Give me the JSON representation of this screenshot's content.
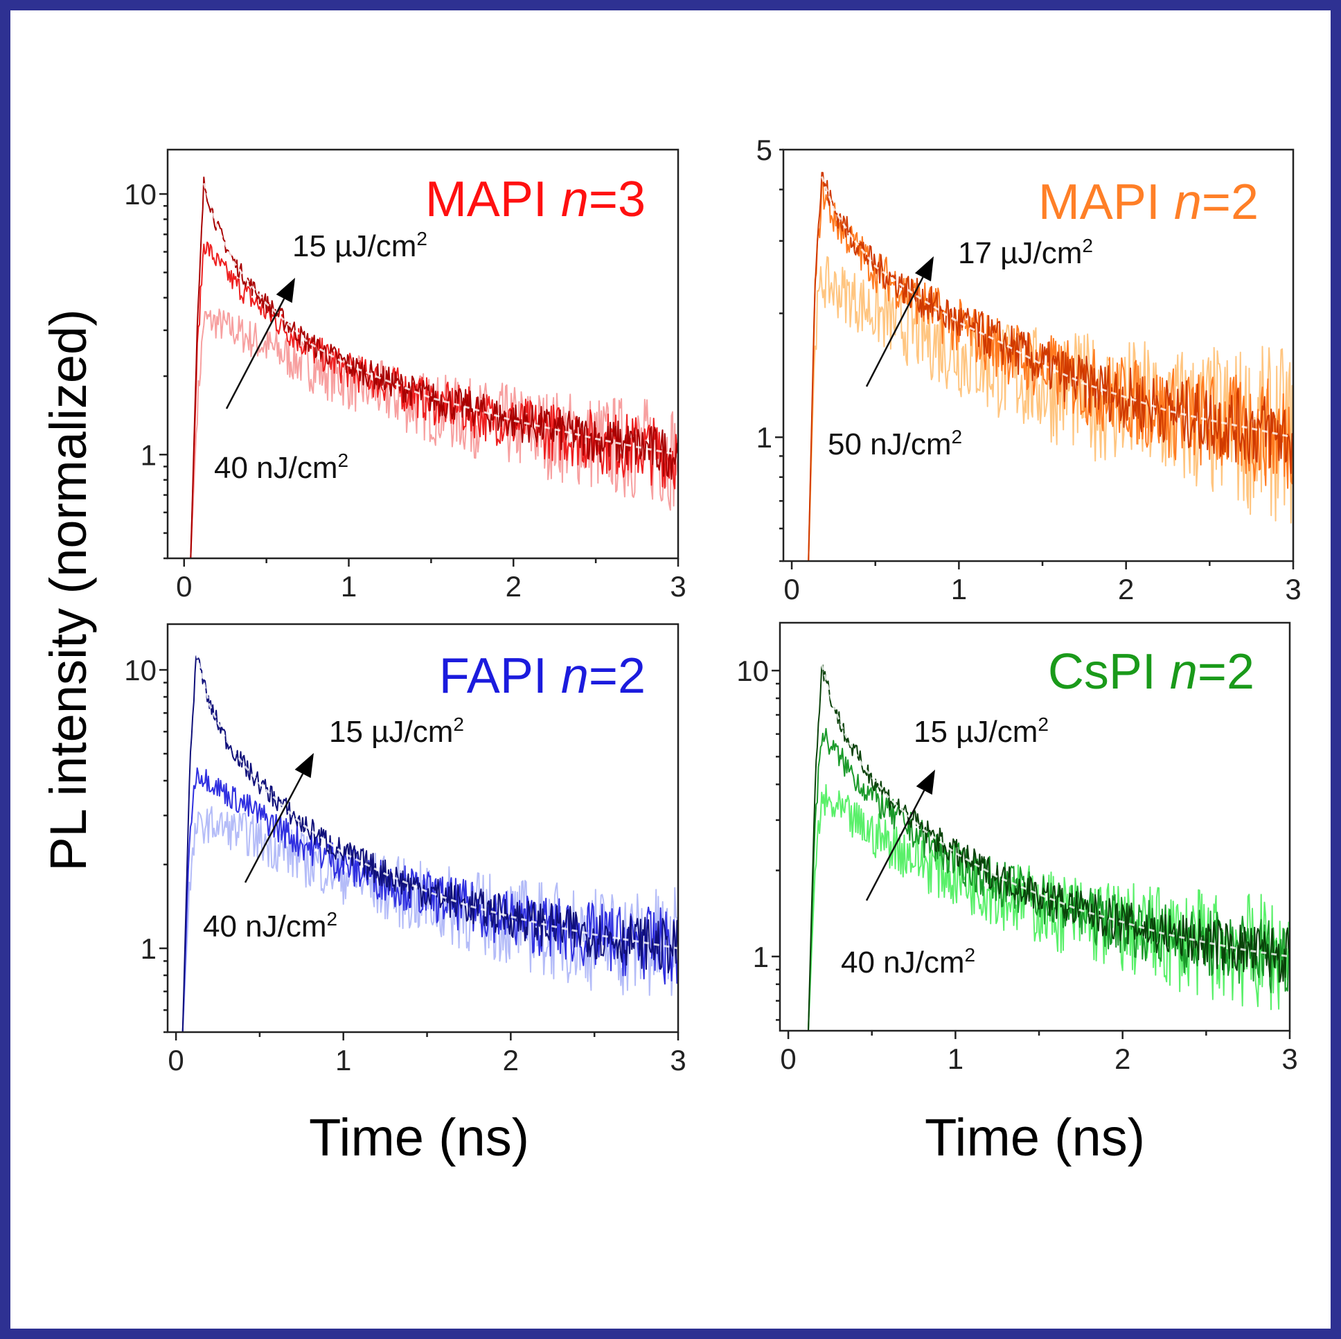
{
  "figure": {
    "ylabel": "PL intensity (normalized)",
    "xlabel": "Time (ns)",
    "border_color": "#2e3192"
  },
  "chart_data": [
    {
      "type": "line",
      "title": {
        "prefix": "MAPI ",
        "italic": "n",
        "suffix": "=3"
      },
      "title_color": "#ff1010",
      "y_scale": "log",
      "xlim": [
        -0.1,
        3
      ],
      "ylim": [
        0.4,
        14.8
      ],
      "x_ticks": [
        "0",
        "1",
        "2",
        "3"
      ],
      "y_ticks": [
        {
          "value": 10,
          "label": "10"
        },
        {
          "value": 1,
          "label": "1"
        }
      ],
      "annotations": {
        "high": "15 µJ/cm",
        "high_sup": "2",
        "low": "40 nJ/cm",
        "low_sup": "2"
      },
      "x": [
        0.04,
        0.08,
        0.12,
        0.2,
        0.3,
        0.4,
        0.5,
        0.75,
        1,
        1.25,
        1.5,
        1.75,
        2,
        2.25,
        2.5,
        2.75,
        3
      ],
      "series": [
        {
          "color": "#f7a0a0",
          "values": [
            0.4,
            1.5,
            3.3,
            3.2,
            3.0,
            2.8,
            2.6,
            2.2,
            1.9,
            1.7,
            1.5,
            1.38,
            1.28,
            1.19,
            1.11,
            1.05,
            1.0
          ]
        },
        {
          "color": "#ee2020",
          "values": [
            0.4,
            2.5,
            6.5,
            5.5,
            4.6,
            4.0,
            3.5,
            2.6,
            2.1,
            1.85,
            1.6,
            1.45,
            1.32,
            1.22,
            1.13,
            1.06,
            1.0
          ]
        },
        {
          "color": "#a80000",
          "values": [
            0.4,
            3,
            11,
            7.5,
            5.5,
            4.5,
            3.8,
            2.7,
            2.2,
            1.9,
            1.65,
            1.5,
            1.35,
            1.25,
            1.15,
            1.07,
            1.0
          ]
        }
      ]
    },
    {
      "type": "line",
      "title": {
        "prefix": "MAPI ",
        "italic": "n",
        "suffix": "=2"
      },
      "title_color": "#ff7f27",
      "y_scale": "log",
      "xlim": [
        -0.05,
        3
      ],
      "ylim": [
        0.5,
        5
      ],
      "x_ticks": [
        "0",
        "1",
        "2",
        "3"
      ],
      "y_ticks": [
        {
          "value": 5,
          "label": "5"
        },
        {
          "value": 1,
          "label": "1"
        }
      ],
      "annotations": {
        "high": "17 µJ/cm",
        "high_sup": "2",
        "low": "50 nJ/cm",
        "low_sup": "2"
      },
      "x": [
        0.1,
        0.14,
        0.18,
        0.25,
        0.35,
        0.5,
        0.75,
        1,
        1.25,
        1.5,
        1.75,
        2,
        2.25,
        2.5,
        2.75,
        3
      ],
      "series": [
        {
          "color": "#ffc580",
          "values": [
            0.5,
            1.8,
            2.4,
            2.3,
            2.2,
            2.0,
            1.8,
            1.6,
            1.45,
            1.35,
            1.27,
            1.2,
            1.13,
            1.08,
            1.04,
            1.0
          ]
        },
        {
          "color": "#ff7a20",
          "values": [
            0.5,
            2.3,
            4.0,
            3.4,
            3.0,
            2.55,
            2.15,
            1.85,
            1.65,
            1.48,
            1.34,
            1.24,
            1.15,
            1.09,
            1.04,
            1.0
          ]
        },
        {
          "color": "#d03a00",
          "values": [
            0.5,
            2.5,
            4.3,
            3.6,
            3.1,
            2.6,
            2.2,
            1.9,
            1.7,
            1.5,
            1.35,
            1.25,
            1.16,
            1.1,
            1.05,
            1.0
          ]
        }
      ]
    },
    {
      "type": "line",
      "title": {
        "prefix": "FAPI ",
        "italic": "n",
        "suffix": "=2"
      },
      "title_color": "#1b1bdd",
      "y_scale": "log",
      "xlim": [
        -0.05,
        3
      ],
      "ylim": [
        0.5,
        14.6
      ],
      "x_ticks": [
        "0",
        "1",
        "2",
        "3"
      ],
      "y_ticks": [
        {
          "value": 10,
          "label": "10"
        },
        {
          "value": 1,
          "label": "1"
        }
      ],
      "annotations": {
        "high": "15 µJ/cm",
        "high_sup": "2",
        "low": "40 nJ/cm",
        "low_sup": "2"
      },
      "x": [
        0.04,
        0.08,
        0.12,
        0.2,
        0.3,
        0.4,
        0.5,
        0.75,
        1,
        1.25,
        1.5,
        1.75,
        2,
        2.25,
        2.5,
        2.75,
        3
      ],
      "series": [
        {
          "color": "#b4bcf8",
          "values": [
            0.5,
            1.6,
            2.7,
            2.8,
            2.7,
            2.6,
            2.45,
            2.1,
            1.85,
            1.65,
            1.48,
            1.36,
            1.25,
            1.16,
            1.09,
            1.04,
            1.0
          ]
        },
        {
          "color": "#3030e0",
          "values": [
            0.5,
            2.5,
            4.3,
            4.0,
            3.6,
            3.3,
            3.0,
            2.4,
            2.0,
            1.75,
            1.55,
            1.4,
            1.28,
            1.18,
            1.1,
            1.05,
            1.0
          ]
        },
        {
          "color": "#10107a",
          "values": [
            0.5,
            4,
            11.5,
            7.5,
            5.6,
            4.6,
            3.9,
            2.8,
            2.2,
            1.85,
            1.6,
            1.42,
            1.3,
            1.2,
            1.12,
            1.06,
            1.0
          ]
        }
      ]
    },
    {
      "type": "line",
      "title": {
        "prefix": "CsPI ",
        "italic": "n",
        "suffix": "=2"
      },
      "title_color": "#1a9a1a",
      "y_scale": "log",
      "xlim": [
        -0.05,
        3
      ],
      "ylim": [
        0.55,
        14.7
      ],
      "x_ticks": [
        "0",
        "1",
        "2",
        "3"
      ],
      "y_ticks": [
        {
          "value": 10,
          "label": "10"
        },
        {
          "value": 1,
          "label": "1"
        }
      ],
      "annotations": {
        "high": "15 µJ/cm",
        "high_sup": "2",
        "low": "40 nJ/cm",
        "low_sup": "2"
      },
      "x": [
        0.12,
        0.16,
        0.2,
        0.27,
        0.35,
        0.45,
        0.6,
        0.8,
        1,
        1.25,
        1.5,
        1.75,
        2,
        2.25,
        2.5,
        2.75,
        3
      ],
      "series": [
        {
          "color": "#5af06a",
          "values": [
            0.55,
            2,
            3.5,
            3.3,
            3.1,
            2.8,
            2.5,
            2.15,
            1.9,
            1.68,
            1.5,
            1.37,
            1.26,
            1.17,
            1.1,
            1.04,
            1.0
          ]
        },
        {
          "color": "#1a9a2a",
          "values": [
            0.55,
            3,
            6,
            5.3,
            4.6,
            3.9,
            3.2,
            2.6,
            2.15,
            1.82,
            1.6,
            1.42,
            1.3,
            1.19,
            1.11,
            1.05,
            1.0
          ]
        },
        {
          "color": "#0a420a",
          "values": [
            0.55,
            4,
            10.5,
            7.5,
            5.8,
            4.6,
            3.6,
            2.8,
            2.3,
            1.9,
            1.65,
            1.45,
            1.32,
            1.2,
            1.12,
            1.05,
            1.0
          ]
        }
      ]
    }
  ]
}
